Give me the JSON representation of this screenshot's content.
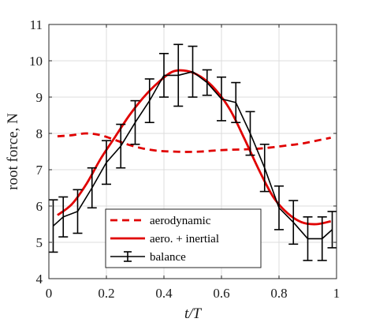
{
  "chart_data": {
    "type": "line",
    "xlabel": "t/T",
    "ylabel": "root force, N",
    "xlim": [
      0,
      1
    ],
    "ylim": [
      4,
      11
    ],
    "xticks": [
      0,
      0.2,
      0.4,
      0.6,
      0.8,
      1
    ],
    "xtick_labels": [
      "0",
      "0.2",
      "0.4",
      "0.6",
      "0.8",
      "1"
    ],
    "yticks": [
      4,
      5,
      6,
      7,
      8,
      9,
      10,
      11
    ],
    "ytick_labels": [
      "4",
      "5",
      "6",
      "7",
      "8",
      "9",
      "10",
      "11"
    ],
    "grid": true,
    "legend_position": "bottom-center",
    "series": [
      {
        "name": "aerodynamic",
        "style": "dashed",
        "color": "#e00000",
        "x": [
          0.03,
          0.08,
          0.13,
          0.18,
          0.23,
          0.28,
          0.33,
          0.38,
          0.43,
          0.48,
          0.53,
          0.58,
          0.63,
          0.68,
          0.73,
          0.78,
          0.83,
          0.88,
          0.93,
          0.98
        ],
        "y": [
          7.92,
          7.95,
          8.0,
          7.95,
          7.82,
          7.68,
          7.58,
          7.52,
          7.5,
          7.49,
          7.5,
          7.53,
          7.55,
          7.56,
          7.58,
          7.62,
          7.67,
          7.72,
          7.8,
          7.88
        ]
      },
      {
        "name": "aero. + inertial",
        "style": "solid",
        "color": "#e00000",
        "x": [
          0.03,
          0.08,
          0.13,
          0.18,
          0.23,
          0.28,
          0.33,
          0.38,
          0.43,
          0.48,
          0.53,
          0.58,
          0.63,
          0.68,
          0.73,
          0.78,
          0.83,
          0.88,
          0.93,
          0.98
        ],
        "y": [
          5.75,
          6.05,
          6.6,
          7.3,
          7.9,
          8.5,
          9.0,
          9.4,
          9.7,
          9.72,
          9.55,
          9.2,
          8.65,
          7.85,
          7.0,
          6.25,
          5.8,
          5.55,
          5.5,
          5.58
        ]
      },
      {
        "name": "balance",
        "style": "errorbar",
        "color": "#000000",
        "x": [
          0.015,
          0.05,
          0.1,
          0.15,
          0.2,
          0.25,
          0.3,
          0.35,
          0.4,
          0.45,
          0.5,
          0.55,
          0.6,
          0.65,
          0.7,
          0.75,
          0.8,
          0.85,
          0.9,
          0.95,
          0.985
        ],
        "y": [
          5.45,
          5.7,
          5.85,
          6.5,
          7.2,
          7.65,
          8.3,
          8.9,
          9.6,
          9.6,
          9.7,
          9.4,
          8.95,
          8.85,
          8.0,
          7.05,
          5.95,
          5.55,
          5.1,
          5.1,
          5.35
        ],
        "err": [
          0.72,
          0.55,
          0.6,
          0.55,
          0.6,
          0.6,
          0.6,
          0.6,
          0.6,
          0.85,
          0.7,
          0.35,
          0.6,
          0.55,
          0.6,
          0.65,
          0.6,
          0.6,
          0.6,
          0.6,
          0.5
        ]
      }
    ]
  }
}
